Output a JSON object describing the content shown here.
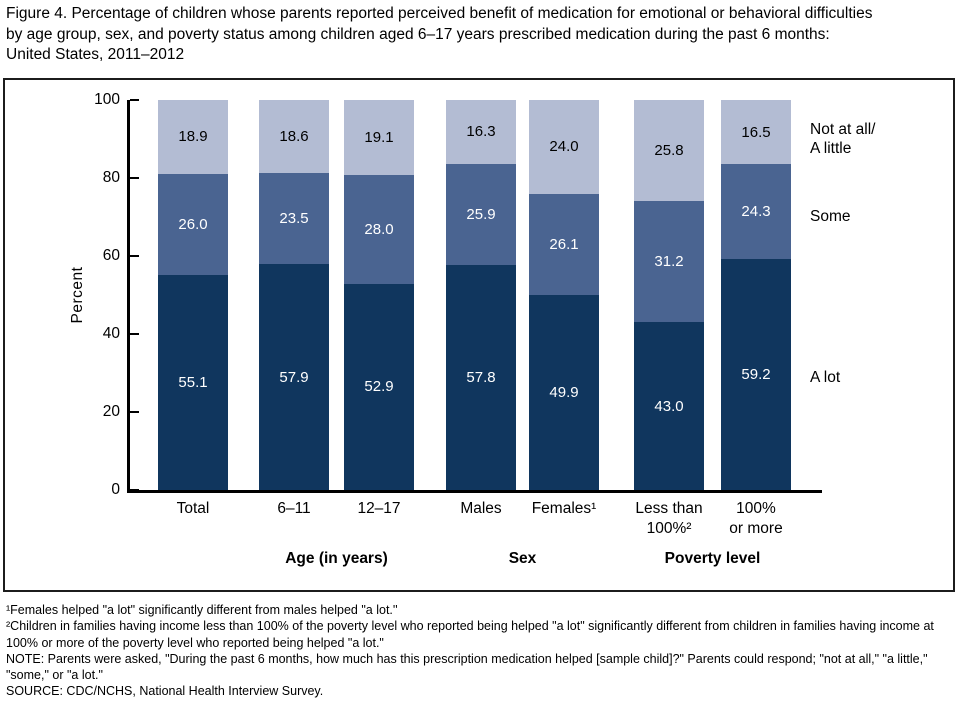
{
  "figure": {
    "title_lines": [
      "Figure 4. Percentage of children whose parents reported perceived benefit of medication for emotional or behavioral difficulties",
      "by age group, sex, and poverty status among children aged 6–17 years prescribed medication during the past 6 months:",
      "United States, 2011–2012"
    ]
  },
  "chart_data": {
    "type": "bar",
    "stacked": true,
    "title": "Figure 4. Percentage of children whose parents reported perceived benefit of medication for emotional or behavioral difficulties by age group, sex, and poverty status among children aged 6–17 years prescribed medication during the past 6 months: United States, 2011–2012",
    "xlabel": "",
    "ylabel": "Percent",
    "ylim": [
      0,
      100
    ],
    "y_ticks": [
      0,
      20,
      40,
      60,
      80,
      100
    ],
    "grid": false,
    "legend_position": "right",
    "categories": [
      "Total",
      "6–11",
      "12–17",
      "Males",
      "Females¹",
      "Less than\n100%²",
      "100%\nor more"
    ],
    "groups": [
      {
        "label": "Age (in years)",
        "start": 1,
        "end": 2
      },
      {
        "label": "Sex",
        "start": 3,
        "end": 4
      },
      {
        "label": "Poverty level",
        "start": 5,
        "end": 6
      }
    ],
    "series": [
      {
        "name": "A lot",
        "color": "#10365e",
        "label_color": "#ffffff",
        "values": [
          55.1,
          57.9,
          52.9,
          57.8,
          49.9,
          43.0,
          59.2
        ]
      },
      {
        "name": "Some",
        "color": "#4a6491",
        "label_color": "#ffffff",
        "values": [
          26.0,
          23.5,
          28.0,
          25.9,
          26.1,
          31.2,
          24.3
        ]
      },
      {
        "name": "Not at all/\nA little",
        "color": "#b3bcd3",
        "label_color": "#000000",
        "values": [
          18.9,
          18.6,
          19.1,
          16.3,
          24.0,
          25.8,
          16.5
        ]
      }
    ]
  },
  "footnotes": [
    "¹Females helped \"a lot\" significantly different from males helped \"a lot.''",
    "²Children in families having income less than 100% of the poverty level who reported being helped \"a lot\" significantly different from children in families having income at 100% or more of the poverty level who reported being helped \"a lot.\"",
    "NOTE: Parents were asked, \"During the past 6 months, how much has this prescription medication helped [sample child]?\" Parents could respond; \"not at all,\" \"a little,\" \"some,\" or \"a lot.\"",
    "SOURCE: CDC/NCHS, National Health Interview Survey."
  ]
}
